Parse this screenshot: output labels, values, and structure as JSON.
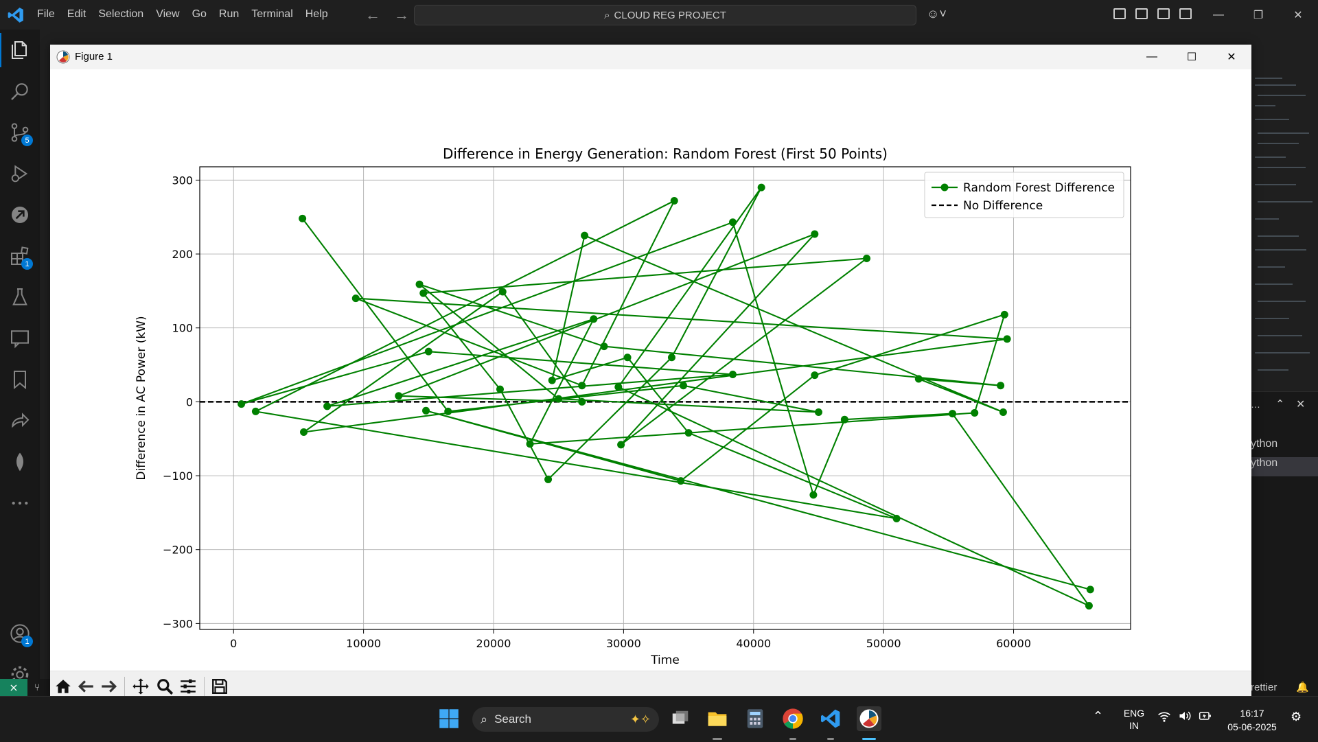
{
  "vscode": {
    "menu": [
      "File",
      "Edit",
      "Selection",
      "View",
      "Go",
      "Run",
      "Terminal",
      "Help"
    ],
    "command_center": "CLOUD REG PROJECT",
    "badges": {
      "source_control": "5",
      "extensions": "1",
      "accounts": "1"
    },
    "panel_rows": [
      "ython",
      "ython"
    ],
    "status_right": "rettier"
  },
  "figure": {
    "window_title": "Figure 1",
    "controls": {
      "minimize": "—",
      "maximize": "☐",
      "close": "✕"
    }
  },
  "chart_data": {
    "type": "line",
    "title": "Difference in Energy Generation: Random Forest (First 50 Points)",
    "xlabel": "Time",
    "ylabel": "Difference in AC Power (kW)",
    "xlim": [
      -2600,
      69000
    ],
    "ylim": [
      -308,
      318
    ],
    "xticks": [
      0,
      10000,
      20000,
      30000,
      40000,
      50000,
      60000
    ],
    "xtick_labels": [
      "0",
      "10000",
      "20000",
      "30000",
      "40000",
      "50000",
      "60000"
    ],
    "yticks": [
      300,
      200,
      100,
      0,
      -100,
      -200,
      -300
    ],
    "ytick_labels": [
      "300",
      "200",
      "100",
      "0",
      "−100",
      "−200",
      "−300"
    ],
    "grid": true,
    "legend_position": "top-right",
    "series": [
      {
        "name": "Random Forest Difference",
        "color": "#008000",
        "marker": "circle",
        "x": [
          5300,
          16500,
          34600,
          45000,
          25000,
          14300,
          28500,
          59000,
          52700,
          59200,
          27000,
          24500,
          30300,
          35000,
          51000,
          1700,
          33900,
          26800,
          9400,
          59500,
          5400,
          20700,
          26800,
          12700,
          44700,
          29800,
          48700,
          14600,
          20500,
          24200,
          33700,
          40600,
          29600,
          65800,
          55300,
          47000,
          44600,
          38400,
          600,
          15000,
          38400,
          7200,
          27700,
          22800,
          57000,
          59300,
          44700,
          34400,
          14800,
          65900
        ],
        "y": [
          248,
          -13,
          22,
          -14,
          4,
          159,
          75,
          22,
          31,
          -14,
          225,
          29,
          60,
          -42,
          -158,
          -13,
          272,
          22,
          140,
          85,
          -41,
          149,
          0,
          8,
          227,
          -58,
          194,
          147,
          17,
          -105,
          60,
          290,
          20,
          -276,
          -16,
          -24,
          -126,
          243,
          -3,
          68,
          37,
          -6,
          112,
          -57,
          -15,
          118,
          36,
          -107,
          -12,
          -254
        ]
      },
      {
        "name": "No Difference",
        "color": "#000000",
        "style": "dashed",
        "x": [
          -2600,
          69000
        ],
        "y": [
          0,
          0
        ]
      }
    ]
  },
  "taskbar": {
    "search_placeholder": "Search",
    "lang_line1": "ENG",
    "lang_line2": "IN",
    "time": "16:17",
    "date": "05-06-2025"
  }
}
